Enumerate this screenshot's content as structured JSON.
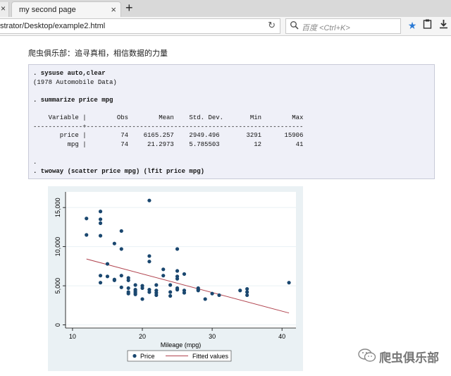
{
  "browser": {
    "tabs": [
      {
        "label": "my second page",
        "active": true
      }
    ],
    "address": "strator/Desktop/example2.html",
    "search_placeholder": "百度 <Ctrl+K>"
  },
  "page": {
    "heading": "爬虫俱乐部：追寻真相，相信数据的力量",
    "stata_output": {
      "cmd1": ". sysuse auto,clear",
      "line1": "(1978 Automobile Data)",
      "cmd2": ". summarize price mpg",
      "header": "    Variable |        Obs        Mean    Std. Dev.       Min        Max",
      "rule": "-------------+---------------------------------------------------------",
      "rows": [
        "       price |         74    6165.257    2949.496       3291      15906",
        "         mpg |         74     21.2973    5.785503         12         41"
      ],
      "dot": ".",
      "cmd3": ". twoway (scatter price mpg) (lfit price mpg)"
    }
  },
  "chart_data": {
    "type": "scatter",
    "xlabel": "Mileage (mpg)",
    "ylabel": "",
    "xlim": [
      9,
      42
    ],
    "ylim": [
      -400,
      17000
    ],
    "xticks": [
      10,
      20,
      30,
      40
    ],
    "yticks": [
      0,
      5000,
      10000,
      15000
    ],
    "ytick_labels": [
      "0",
      "5,000",
      "10,000",
      "15,000"
    ],
    "grid": true,
    "legend_position": "bottom",
    "series": [
      {
        "name": "Price",
        "marker": "circle",
        "color": "#1a476f",
        "points": [
          [
            12,
            13600
          ],
          [
            12,
            11500
          ],
          [
            14,
            14500
          ],
          [
            14,
            13500
          ],
          [
            14,
            13000
          ],
          [
            14,
            11400
          ],
          [
            14,
            6300
          ],
          [
            14,
            5400
          ],
          [
            15,
            7800
          ],
          [
            15,
            6200
          ],
          [
            16,
            10400
          ],
          [
            16,
            5800
          ],
          [
            16,
            5700
          ],
          [
            17,
            12000
          ],
          [
            17,
            9700
          ],
          [
            17,
            6300
          ],
          [
            17,
            4800
          ],
          [
            18,
            6000
          ],
          [
            18,
            5700
          ],
          [
            18,
            4700
          ],
          [
            18,
            4200
          ],
          [
            18,
            4000
          ],
          [
            19,
            5100
          ],
          [
            19,
            4500
          ],
          [
            19,
            4300
          ],
          [
            19,
            4100
          ],
          [
            19,
            3900
          ],
          [
            20,
            5000
          ],
          [
            20,
            4700
          ],
          [
            20,
            3300
          ],
          [
            21,
            15900
          ],
          [
            21,
            8800
          ],
          [
            21,
            8100
          ],
          [
            21,
            4500
          ],
          [
            21,
            4200
          ],
          [
            22,
            5100
          ],
          [
            22,
            4400
          ],
          [
            22,
            4100
          ],
          [
            22,
            3800
          ],
          [
            23,
            7100
          ],
          [
            23,
            6300
          ],
          [
            24,
            5100
          ],
          [
            24,
            4200
          ],
          [
            24,
            3700
          ],
          [
            25,
            9700
          ],
          [
            25,
            6900
          ],
          [
            25,
            6200
          ],
          [
            25,
            5900
          ],
          [
            25,
            4700
          ],
          [
            25,
            4500
          ],
          [
            26,
            6500
          ],
          [
            26,
            4400
          ],
          [
            26,
            4100
          ],
          [
            28,
            4700
          ],
          [
            28,
            4500
          ],
          [
            28,
            4400
          ],
          [
            29,
            3300
          ],
          [
            30,
            4000
          ],
          [
            31,
            3800
          ],
          [
            34,
            4400
          ],
          [
            35,
            4600
          ],
          [
            35,
            4200
          ],
          [
            35,
            3800
          ],
          [
            41,
            5400
          ]
        ]
      },
      {
        "name": "Fitted values",
        "type": "line",
        "color": "#b1444f",
        "points": [
          [
            12,
            8420
          ],
          [
            41,
            1520
          ]
        ]
      }
    ]
  },
  "watermark": {
    "text": "爬虫俱乐部"
  },
  "colors": {
    "figure_background": "#eaf1f4",
    "code_background": "#eff0f8",
    "accent_star": "#2a7ad5"
  }
}
